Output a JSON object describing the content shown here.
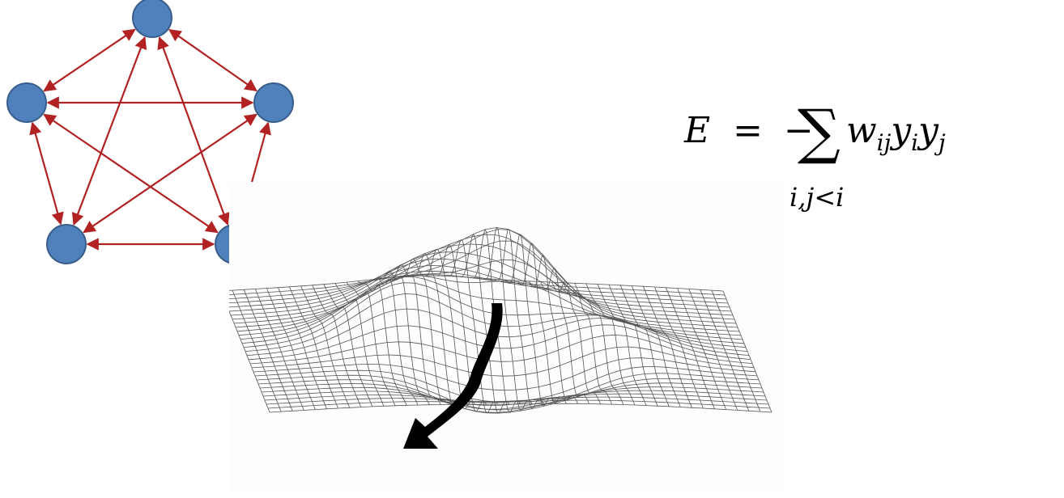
{
  "diagram": {
    "nodes": [
      {
        "id": "n1",
        "label": ""
      },
      {
        "id": "n2",
        "label": ""
      },
      {
        "id": "n3",
        "label": ""
      },
      {
        "id": "n4",
        "label": ""
      },
      {
        "id": "n5",
        "label": ""
      }
    ],
    "edges": [
      [
        "n1",
        "n2"
      ],
      [
        "n1",
        "n3"
      ],
      [
        "n1",
        "n4"
      ],
      [
        "n1",
        "n5"
      ],
      [
        "n2",
        "n3"
      ],
      [
        "n2",
        "n4"
      ],
      [
        "n2",
        "n5"
      ],
      [
        "n3",
        "n4"
      ],
      [
        "n3",
        "n5"
      ],
      [
        "n4",
        "n5"
      ]
    ],
    "edge_style": "bidirectional-arrows",
    "colors": {
      "node_fill": "#4f81bd",
      "node_stroke": "#385d8a",
      "edge": "#b22222"
    }
  },
  "equation": {
    "lhs": "E",
    "equals": "=",
    "minus": "−",
    "sum_symbol": "∑",
    "sum_index": "i,j<i",
    "term": {
      "w": "w",
      "w_sub": "ij",
      "y1": "y",
      "y1_sub": "i",
      "y2": "y",
      "y2_sub": "j"
    }
  },
  "surface": {
    "description_icon": "energy-landscape-mesh",
    "arrow_icon": "descent-arrow-icon"
  }
}
